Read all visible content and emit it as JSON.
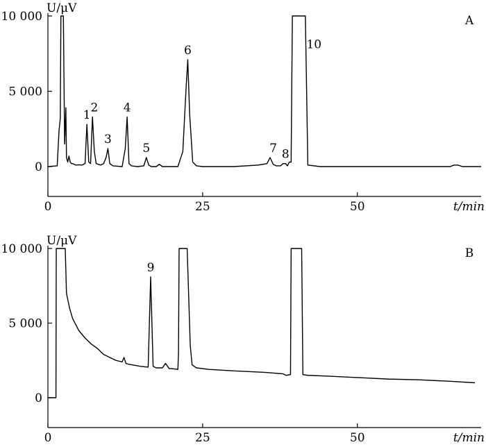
{
  "chart_data": [
    {
      "type": "line",
      "panel_label": "A",
      "ylabel": "U/μV",
      "xlabel": "t/min",
      "x_ticks": [
        "0",
        "25",
        "50"
      ],
      "y_ticks": [
        "0",
        "5 000",
        "10 000"
      ],
      "xlim": [
        0,
        70
      ],
      "ylim": [
        -2000,
        10000
      ],
      "series": [
        {
          "x": [
            0,
            1.5,
            1.8,
            2.0,
            2.1,
            2.3,
            2.5,
            2.7,
            2.9,
            3.0,
            3.2,
            3.4,
            3.6,
            3.8,
            4.0,
            4.5,
            5.0,
            5.5,
            6.0,
            6.3,
            6.6,
            6.9,
            7.2,
            7.5,
            7.8,
            8.5,
            9.0,
            9.4,
            9.7,
            10.0,
            10.5,
            12.0,
            12.5,
            12.8,
            13.1,
            13.5,
            14.5,
            15.5,
            15.9,
            16.3,
            16.7,
            17.5,
            18.0,
            18.5,
            21.0,
            21.8,
            22.3,
            22.6,
            22.9,
            23.4,
            24.0,
            25.0,
            26.0,
            30.0,
            34.0,
            35.4,
            35.9,
            36.4,
            36.9,
            37.6,
            38.0,
            38.4,
            38.7,
            39.0,
            39.3,
            39.5,
            40.0,
            41.0,
            41.3,
            41.6,
            42.0,
            44.0,
            50.0,
            60.0,
            65.0,
            65.6,
            66.2,
            67.0,
            70.0
          ],
          "values": [
            0,
            50,
            2400,
            3200,
            10000,
            10000,
            10000,
            1500,
            3900,
            600,
            300,
            700,
            300,
            200,
            200,
            100,
            120,
            100,
            200,
            2800,
            300,
            200,
            3300,
            1000,
            200,
            100,
            200,
            600,
            1200,
            200,
            50,
            0,
            1200,
            3300,
            200,
            50,
            0,
            50,
            600,
            100,
            0,
            0,
            150,
            0,
            0,
            1000,
            5000,
            7100,
            3500,
            300,
            50,
            0,
            0,
            0,
            100,
            200,
            600,
            150,
            50,
            50,
            200,
            200,
            50,
            300,
            300,
            10000,
            10000,
            10000,
            10000,
            10000,
            100,
            0,
            0,
            0,
            0,
            100,
            100,
            0,
            0
          ]
        }
      ],
      "peak_labels": [
        {
          "text": "1",
          "x": 6.3,
          "y": 2800
        },
        {
          "text": "2",
          "x": 7.5,
          "y": 3300
        },
        {
          "text": "3",
          "x": 9.7,
          "y": 1200
        },
        {
          "text": "4",
          "x": 12.8,
          "y": 3300
        },
        {
          "text": "5",
          "x": 15.9,
          "y": 600
        },
        {
          "text": "6",
          "x": 22.6,
          "y": 7100
        },
        {
          "text": "7",
          "x": 36.4,
          "y": 600
        },
        {
          "text": "8",
          "x": 38.4,
          "y": 200
        },
        {
          "text": "10",
          "x": 43.0,
          "y": 7500
        }
      ]
    },
    {
      "type": "line",
      "panel_label": "B",
      "ylabel": "U/μV",
      "xlabel": "t/min",
      "x_ticks": [
        "0",
        "25",
        "50"
      ],
      "y_ticks": [
        "0",
        "5 000",
        "10 000"
      ],
      "xlim": [
        0,
        70
      ],
      "ylim": [
        -2000,
        10000
      ],
      "series": [
        {
          "x": [
            0,
            1.3,
            1.35,
            1.45,
            2.8,
            3.0,
            3.5,
            4.0,
            5.0,
            6.0,
            7.0,
            8.0,
            9.0,
            10.0,
            11.0,
            12.0,
            12.3,
            12.6,
            13.0,
            15.0,
            16.2,
            16.6,
            17.0,
            17.5,
            18.5,
            19.0,
            19.6,
            20.0,
            21.0,
            21.1,
            21.2,
            21.8,
            22.0,
            22.5,
            23.0,
            23.3,
            24.0,
            26.0,
            30.0,
            35.0,
            38.0,
            38.5,
            39.2,
            39.3,
            41.0,
            41.2,
            42.0,
            45.0,
            50.0,
            55.0,
            60.0,
            65.0,
            69.0
          ],
          "values": [
            0,
            0,
            10000,
            10000,
            10000,
            7000,
            6000,
            5300,
            4500,
            4000,
            3600,
            3300,
            2900,
            2700,
            2500,
            2400,
            2700,
            2300,
            2250,
            2100,
            2050,
            8100,
            2100,
            2000,
            2000,
            2300,
            1950,
            1950,
            1900,
            3000,
            10000,
            10000,
            10000,
            10000,
            3500,
            2200,
            2000,
            1900,
            1800,
            1700,
            1600,
            1500,
            1550,
            10000,
            10000,
            1550,
            1500,
            1450,
            1350,
            1250,
            1200,
            1100,
            1000
          ]
        }
      ],
      "peak_labels": [
        {
          "text": "9",
          "x": 16.6,
          "y": 8100
        }
      ]
    }
  ]
}
